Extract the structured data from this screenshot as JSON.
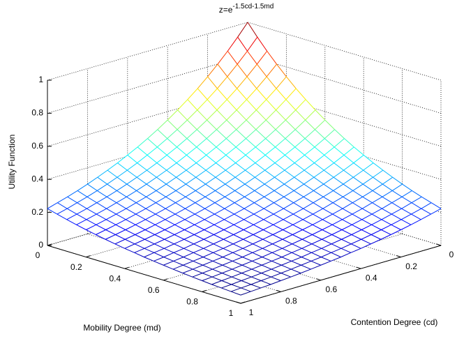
{
  "chart_data": {
    "type": "mesh",
    "title": "z=e",
    "title_exponent": "-1.5cd-1.5md",
    "xlabel": "Contention Degree (cd)",
    "ylabel": "Mobility Degree (md)",
    "zlabel": "Utility Function",
    "x": [
      0,
      0.05,
      0.1,
      0.15,
      0.2,
      0.25,
      0.3,
      0.35,
      0.4,
      0.45,
      0.5,
      0.55,
      0.6,
      0.65,
      0.7,
      0.75,
      0.8,
      0.85,
      0.9,
      0.95,
      1
    ],
    "y": [
      0,
      0.05,
      0.1,
      0.15,
      0.2,
      0.25,
      0.3,
      0.35,
      0.4,
      0.45,
      0.5,
      0.55,
      0.6,
      0.65,
      0.7,
      0.75,
      0.8,
      0.85,
      0.9,
      0.95,
      1
    ],
    "z": [
      [
        1,
        0.928,
        0.861,
        0.799,
        0.741,
        0.687,
        0.638,
        0.592,
        0.549,
        0.509,
        0.472,
        0.438,
        0.407,
        0.377,
        0.35,
        0.325,
        0.301,
        0.279,
        0.259,
        0.241,
        0.223
      ],
      [
        0.928,
        0.861,
        0.799,
        0.741,
        0.687,
        0.638,
        0.592,
        0.549,
        0.509,
        0.472,
        0.438,
        0.407,
        0.377,
        0.35,
        0.325,
        0.301,
        0.279,
        0.259,
        0.241,
        0.223,
        0.207
      ],
      [
        0.861,
        0.799,
        0.741,
        0.687,
        0.638,
        0.592,
        0.549,
        0.509,
        0.472,
        0.438,
        0.407,
        0.377,
        0.35,
        0.325,
        0.301,
        0.279,
        0.259,
        0.241,
        0.223,
        0.207,
        0.192
      ],
      [
        0.799,
        0.741,
        0.687,
        0.638,
        0.592,
        0.549,
        0.509,
        0.472,
        0.438,
        0.407,
        0.377,
        0.35,
        0.325,
        0.301,
        0.279,
        0.259,
        0.241,
        0.223,
        0.207,
        0.192,
        0.178
      ],
      [
        0.741,
        0.687,
        0.638,
        0.592,
        0.549,
        0.509,
        0.472,
        0.438,
        0.407,
        0.377,
        0.35,
        0.325,
        0.301,
        0.279,
        0.259,
        0.241,
        0.223,
        0.207,
        0.192,
        0.178,
        0.165
      ],
      [
        0.687,
        0.638,
        0.592,
        0.549,
        0.509,
        0.472,
        0.438,
        0.407,
        0.377,
        0.35,
        0.325,
        0.301,
        0.279,
        0.259,
        0.241,
        0.223,
        0.207,
        0.192,
        0.178,
        0.165,
        0.153
      ],
      [
        0.638,
        0.592,
        0.549,
        0.509,
        0.472,
        0.438,
        0.407,
        0.377,
        0.35,
        0.325,
        0.301,
        0.279,
        0.259,
        0.241,
        0.223,
        0.207,
        0.192,
        0.178,
        0.165,
        0.153,
        0.142
      ],
      [
        0.592,
        0.549,
        0.509,
        0.472,
        0.438,
        0.407,
        0.377,
        0.35,
        0.325,
        0.301,
        0.279,
        0.259,
        0.241,
        0.223,
        0.207,
        0.192,
        0.178,
        0.165,
        0.153,
        0.142,
        0.132
      ],
      [
        0.549,
        0.509,
        0.472,
        0.438,
        0.407,
        0.377,
        0.35,
        0.325,
        0.301,
        0.279,
        0.259,
        0.241,
        0.223,
        0.207,
        0.192,
        0.178,
        0.165,
        0.153,
        0.142,
        0.132,
        0.122
      ],
      [
        0.509,
        0.472,
        0.438,
        0.407,
        0.377,
        0.35,
        0.325,
        0.301,
        0.279,
        0.259,
        0.241,
        0.223,
        0.207,
        0.192,
        0.178,
        0.165,
        0.153,
        0.142,
        0.132,
        0.122,
        0.114
      ],
      [
        0.472,
        0.438,
        0.407,
        0.377,
        0.35,
        0.325,
        0.301,
        0.279,
        0.259,
        0.241,
        0.223,
        0.207,
        0.192,
        0.178,
        0.165,
        0.153,
        0.142,
        0.132,
        0.122,
        0.114,
        0.105
      ],
      [
        0.438,
        0.407,
        0.377,
        0.35,
        0.325,
        0.301,
        0.279,
        0.259,
        0.241,
        0.223,
        0.207,
        0.192,
        0.178,
        0.165,
        0.153,
        0.142,
        0.132,
        0.122,
        0.114,
        0.105,
        0.098
      ],
      [
        0.407,
        0.377,
        0.35,
        0.325,
        0.301,
        0.279,
        0.259,
        0.241,
        0.223,
        0.207,
        0.192,
        0.178,
        0.165,
        0.153,
        0.142,
        0.132,
        0.122,
        0.114,
        0.105,
        0.098,
        0.091
      ],
      [
        0.377,
        0.35,
        0.325,
        0.301,
        0.279,
        0.259,
        0.241,
        0.223,
        0.207,
        0.192,
        0.178,
        0.165,
        0.153,
        0.142,
        0.132,
        0.122,
        0.114,
        0.105,
        0.098,
        0.091,
        0.084
      ],
      [
        0.35,
        0.325,
        0.301,
        0.279,
        0.259,
        0.241,
        0.223,
        0.207,
        0.192,
        0.178,
        0.165,
        0.153,
        0.142,
        0.132,
        0.122,
        0.114,
        0.105,
        0.098,
        0.091,
        0.084,
        0.078
      ],
      [
        0.325,
        0.301,
        0.279,
        0.259,
        0.241,
        0.223,
        0.207,
        0.192,
        0.178,
        0.165,
        0.153,
        0.142,
        0.132,
        0.122,
        0.114,
        0.105,
        0.098,
        0.091,
        0.084,
        0.078,
        0.072
      ],
      [
        0.301,
        0.279,
        0.259,
        0.241,
        0.223,
        0.207,
        0.192,
        0.178,
        0.165,
        0.153,
        0.142,
        0.132,
        0.122,
        0.114,
        0.105,
        0.098,
        0.091,
        0.084,
        0.078,
        0.072,
        0.067
      ],
      [
        0.279,
        0.259,
        0.241,
        0.223,
        0.207,
        0.192,
        0.178,
        0.165,
        0.153,
        0.142,
        0.132,
        0.122,
        0.114,
        0.105,
        0.098,
        0.091,
        0.084,
        0.078,
        0.072,
        0.067,
        0.062
      ],
      [
        0.259,
        0.241,
        0.223,
        0.207,
        0.192,
        0.178,
        0.165,
        0.153,
        0.142,
        0.132,
        0.122,
        0.114,
        0.105,
        0.098,
        0.091,
        0.084,
        0.078,
        0.072,
        0.067,
        0.062,
        0.058
      ],
      [
        0.241,
        0.223,
        0.207,
        0.192,
        0.178,
        0.165,
        0.153,
        0.142,
        0.132,
        0.122,
        0.114,
        0.105,
        0.098,
        0.091,
        0.084,
        0.078,
        0.072,
        0.067,
        0.062,
        0.058,
        0.054
      ],
      [
        0.223,
        0.207,
        0.192,
        0.178,
        0.165,
        0.153,
        0.142,
        0.132,
        0.122,
        0.114,
        0.105,
        0.098,
        0.091,
        0.084,
        0.078,
        0.072,
        0.067,
        0.062,
        0.058,
        0.054,
        0.05
      ]
    ],
    "colormap": "jet",
    "xlim": [
      0,
      1
    ],
    "ylim": [
      0,
      1
    ],
    "zlim": [
      0,
      1
    ],
    "xticks": [
      0,
      0.2,
      0.4,
      0.6,
      0.8,
      1
    ],
    "yticks": [
      0,
      0.2,
      0.4,
      0.6,
      0.8,
      1
    ],
    "zticks": [
      0,
      0.2,
      0.4,
      0.6,
      0.8,
      1
    ],
    "grid": true
  }
}
